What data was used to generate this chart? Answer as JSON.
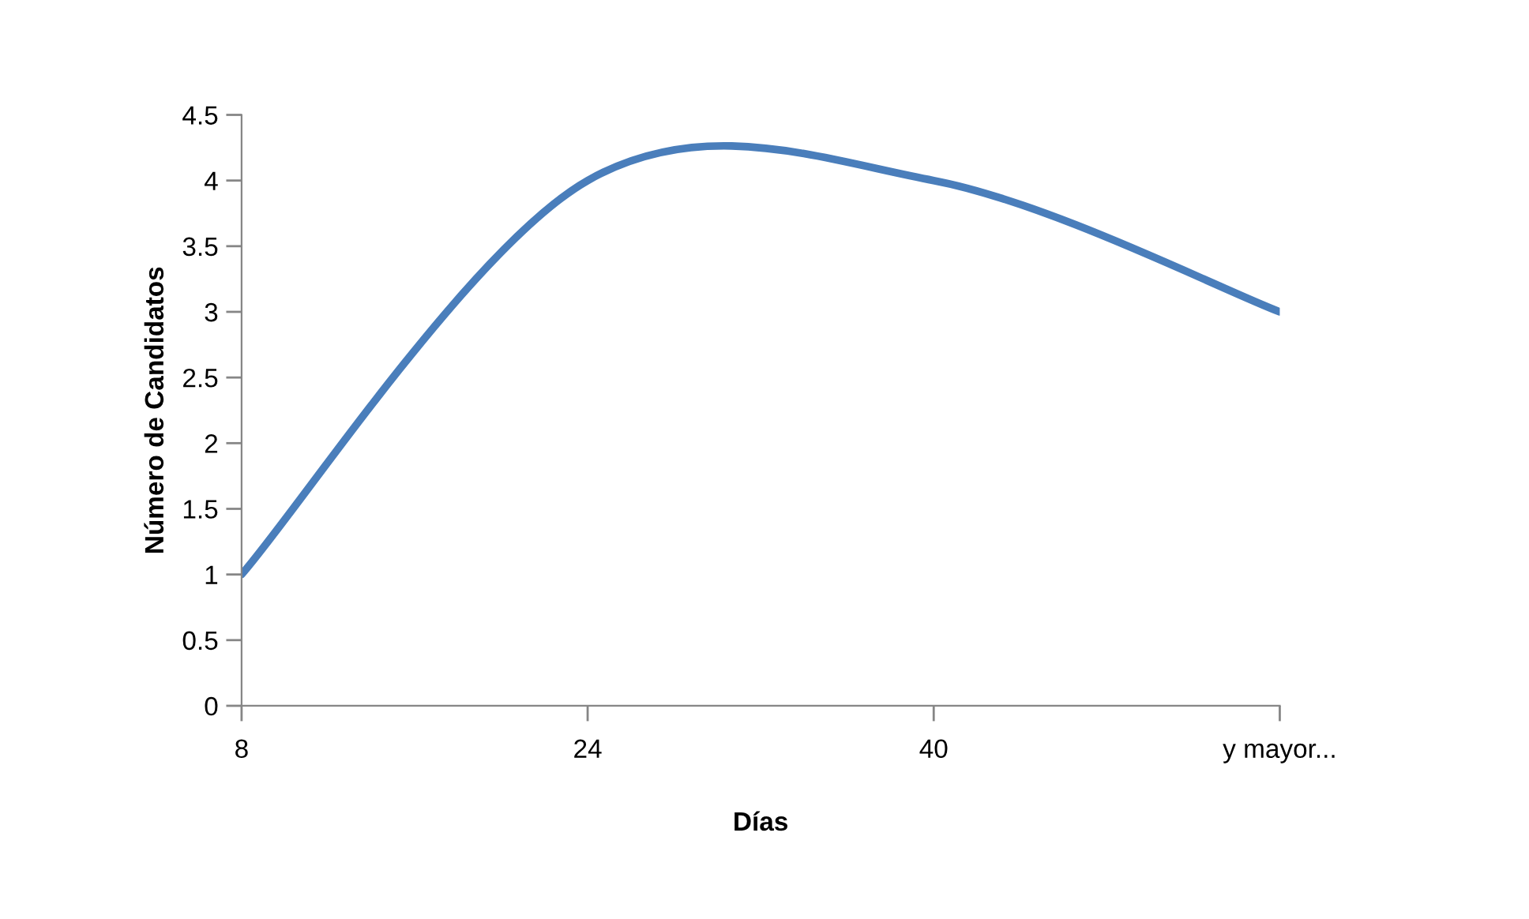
{
  "chart_data": {
    "type": "line",
    "xlabel": "Días",
    "ylabel": "Número de Candidatos",
    "categories": [
      "8",
      "24",
      "40",
      "y mayor..."
    ],
    "series": [
      {
        "color": "#4a7ebb",
        "values": [
          1,
          4,
          4,
          3
        ]
      }
    ],
    "ylim": [
      0,
      4.5
    ],
    "yticks": [
      0,
      0.5,
      1,
      1.5,
      2,
      2.5,
      3,
      3.5,
      4,
      4.5
    ],
    "grid": false,
    "legend": false,
    "marker": "none",
    "line_style": "solid"
  }
}
